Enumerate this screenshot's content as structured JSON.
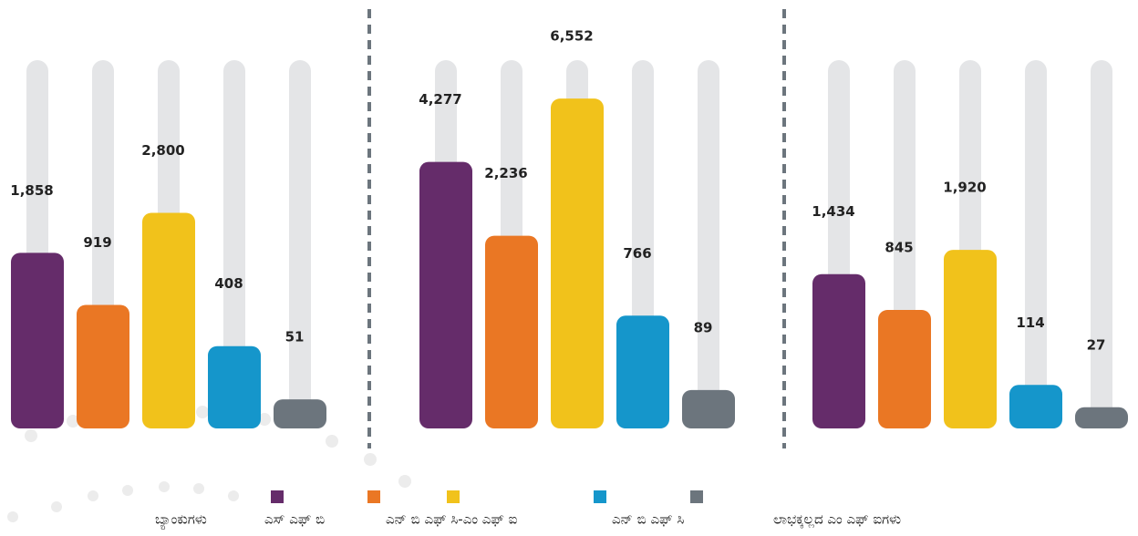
{
  "chart_data": {
    "type": "bar",
    "categories": [
      null,
      null,
      null
    ],
    "series": [
      {
        "name": "ಎಸ್ ಎಫ್ ಬಿ",
        "color": "#652c6a",
        "values": [
          1858,
          4277,
          1434
        ],
        "value_labels": [
          "1,858",
          "4,277",
          "1,434"
        ]
      },
      {
        "name": "ಎನ್ ಬಿ ಎಫ್ ಸಿ-ಎಂ ಎಫ್ ಐ",
        "color": "#ea7724",
        "values": [
          919,
          2236,
          845
        ],
        "value_labels": [
          "919",
          "2,236",
          "845"
        ]
      },
      {
        "name": null,
        "color": "#f1c21b",
        "values": [
          2800,
          6552,
          1920
        ],
        "value_labels": [
          "2,800",
          "6,552",
          "1,920"
        ]
      },
      {
        "name": "ಎನ್ ಬಿ ಎಫ್ ಸಿ",
        "color": "#1596cb",
        "values": [
          408,
          766,
          114
        ],
        "value_labels": [
          "408",
          "766",
          "114"
        ]
      },
      {
        "name": null,
        "color": "#6c757d",
        "values": [
          51,
          89,
          27
        ],
        "value_labels": [
          "51",
          "89",
          "27"
        ]
      }
    ],
    "group_labels": [
      "ಬ್ಯಾಂಕುಗಳು",
      null,
      "ಲಾಭಕ್ಕಲ್ಲದ ಎಂ ಎಫ್ ಐಗಳು"
    ]
  }
}
